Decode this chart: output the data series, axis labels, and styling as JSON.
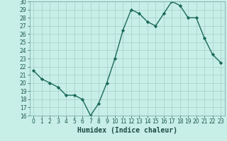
{
  "x": [
    0,
    1,
    2,
    3,
    4,
    5,
    6,
    7,
    8,
    9,
    10,
    11,
    12,
    13,
    14,
    15,
    16,
    17,
    18,
    19,
    20,
    21,
    22,
    23
  ],
  "y": [
    21.5,
    20.5,
    20.0,
    19.5,
    18.5,
    18.5,
    18.0,
    16.0,
    17.5,
    20.0,
    23.0,
    26.5,
    29.0,
    28.5,
    27.5,
    27.0,
    28.5,
    30.0,
    29.5,
    28.0,
    28.0,
    25.5,
    23.5,
    22.5
  ],
  "line_color": "#1a6b5a",
  "marker": "D",
  "marker_size": 2.2,
  "bg_color": "#c8eee8",
  "grid_color": "#a8cec8",
  "xlabel": "Humidex (Indice chaleur)",
  "ylim": [
    16,
    30
  ],
  "xlim": [
    -0.5,
    23.5
  ],
  "yticks": [
    16,
    17,
    18,
    19,
    20,
    21,
    22,
    23,
    24,
    25,
    26,
    27,
    28,
    29,
    30
  ],
  "xticks": [
    0,
    1,
    2,
    3,
    4,
    5,
    6,
    7,
    8,
    9,
    10,
    11,
    12,
    13,
    14,
    15,
    16,
    17,
    18,
    19,
    20,
    21,
    22,
    23
  ],
  "tick_color": "#1a5a4a",
  "xlabel_color": "#1a4a40",
  "xlabel_fontsize": 7,
  "tick_fontsize": 5.5,
  "line_width": 1.0
}
